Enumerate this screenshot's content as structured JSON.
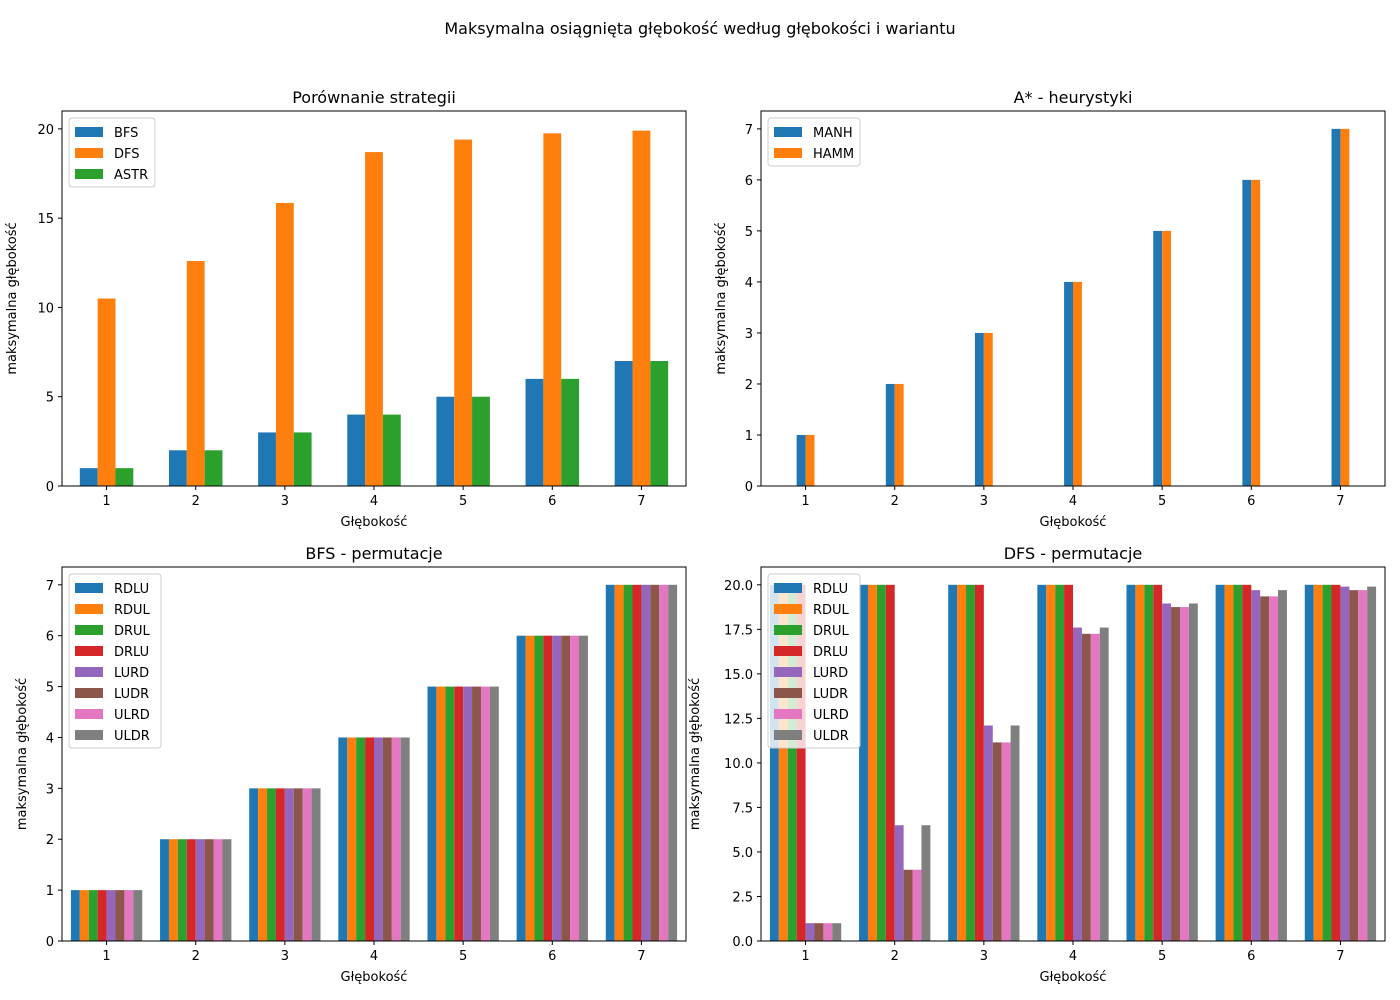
{
  "figure_title": "Maksymalna osiągnięta głębokość według głębokości i wariantu",
  "chart_data": [
    {
      "type": "bar",
      "title": "Porównanie strategii",
      "xlabel": "Głębokość",
      "ylabel": "maksymalna głębokość",
      "categories": [
        "1",
        "2",
        "3",
        "4",
        "5",
        "6",
        "7"
      ],
      "ylim": [
        0,
        21
      ],
      "yticks": [
        0,
        5,
        10,
        15,
        20
      ],
      "legend_position": "upper-left",
      "series": [
        {
          "name": "BFS",
          "color": "#1f77b4",
          "values": [
            1,
            2,
            3,
            4,
            5,
            6,
            7
          ]
        },
        {
          "name": "DFS",
          "color": "#ff7f0e",
          "values": [
            10.5,
            12.6,
            15.85,
            18.7,
            19.4,
            19.75,
            19.9
          ]
        },
        {
          "name": "ASTR",
          "color": "#2ca02c",
          "values": [
            1,
            2,
            3,
            4,
            5,
            6,
            7
          ]
        }
      ]
    },
    {
      "type": "bar",
      "title": "A* - heurystyki",
      "xlabel": "Głębokość",
      "ylabel": "maksymalna głębokość",
      "categories": [
        "1",
        "2",
        "3",
        "4",
        "5",
        "6",
        "7"
      ],
      "ylim": [
        0,
        7.35
      ],
      "yticks": [
        0,
        1,
        2,
        3,
        4,
        5,
        6,
        7
      ],
      "legend_position": "upper-left",
      "series": [
        {
          "name": "MANH",
          "color": "#1f77b4",
          "values": [
            1,
            2,
            3,
            4,
            5,
            6,
            7
          ]
        },
        {
          "name": "HAMM",
          "color": "#ff7f0e",
          "values": [
            1,
            2,
            3,
            4,
            5,
            6,
            7
          ]
        }
      ]
    },
    {
      "type": "bar",
      "title": "BFS - permutacje",
      "xlabel": "Głębokość",
      "ylabel": "maksymalna głębokość",
      "categories": [
        "1",
        "2",
        "3",
        "4",
        "5",
        "6",
        "7"
      ],
      "ylim": [
        0,
        7.35
      ],
      "yticks": [
        0,
        1,
        2,
        3,
        4,
        5,
        6,
        7
      ],
      "legend_position": "upper-left",
      "series": [
        {
          "name": "RDLU",
          "color": "#1f77b4",
          "values": [
            1,
            2,
            3,
            4,
            5,
            6,
            7
          ]
        },
        {
          "name": "RDUL",
          "color": "#ff7f0e",
          "values": [
            1,
            2,
            3,
            4,
            5,
            6,
            7
          ]
        },
        {
          "name": "DRUL",
          "color": "#2ca02c",
          "values": [
            1,
            2,
            3,
            4,
            5,
            6,
            7
          ]
        },
        {
          "name": "DRLU",
          "color": "#d62728",
          "values": [
            1,
            2,
            3,
            4,
            5,
            6,
            7
          ]
        },
        {
          "name": "LURD",
          "color": "#9467bd",
          "values": [
            1,
            2,
            3,
            4,
            5,
            6,
            7
          ]
        },
        {
          "name": "LUDR",
          "color": "#8c564b",
          "values": [
            1,
            2,
            3,
            4,
            5,
            6,
            7
          ]
        },
        {
          "name": "ULRD",
          "color": "#e377c2",
          "values": [
            1,
            2,
            3,
            4,
            5,
            6,
            7
          ]
        },
        {
          "name": "ULDR",
          "color": "#7f7f7f",
          "values": [
            1,
            2,
            3,
            4,
            5,
            6,
            7
          ]
        }
      ]
    },
    {
      "type": "bar",
      "title": "DFS - permutacje",
      "xlabel": "Głębokość",
      "ylabel": "maksymalna głębokość",
      "categories": [
        "1",
        "2",
        "3",
        "4",
        "5",
        "6",
        "7"
      ],
      "ylim": [
        0,
        21
      ],
      "yticks": [
        0,
        2.5,
        5,
        7.5,
        10,
        12.5,
        15,
        17.5,
        20
      ],
      "ytick_labels": [
        "0.0",
        "2.5",
        "5.0",
        "7.5",
        "10.0",
        "12.5",
        "15.0",
        "17.5",
        "20.0"
      ],
      "legend_position": "upper-left",
      "series": [
        {
          "name": "RDLU",
          "color": "#1f77b4",
          "values": [
            20,
            20,
            20,
            20,
            20,
            20,
            20
          ]
        },
        {
          "name": "RDUL",
          "color": "#ff7f0e",
          "values": [
            20,
            20,
            20,
            20,
            20,
            20,
            20
          ]
        },
        {
          "name": "DRUL",
          "color": "#2ca02c",
          "values": [
            20,
            20,
            20,
            20,
            20,
            20,
            20
          ]
        },
        {
          "name": "DRLU",
          "color": "#d62728",
          "values": [
            20,
            20,
            20,
            20,
            20,
            20,
            20
          ]
        },
        {
          "name": "LURD",
          "color": "#9467bd",
          "values": [
            1,
            6.5,
            12.1,
            17.6,
            18.95,
            19.7,
            19.9
          ]
        },
        {
          "name": "LUDR",
          "color": "#8c564b",
          "values": [
            1,
            4,
            11.15,
            17.25,
            18.75,
            19.35,
            19.7
          ]
        },
        {
          "name": "ULRD",
          "color": "#e377c2",
          "values": [
            1,
            4,
            11.15,
            17.25,
            18.75,
            19.35,
            19.7
          ]
        },
        {
          "name": "ULDR",
          "color": "#7f7f7f",
          "values": [
            1,
            6.5,
            12.1,
            17.6,
            18.95,
            19.7,
            19.9
          ]
        }
      ]
    }
  ]
}
